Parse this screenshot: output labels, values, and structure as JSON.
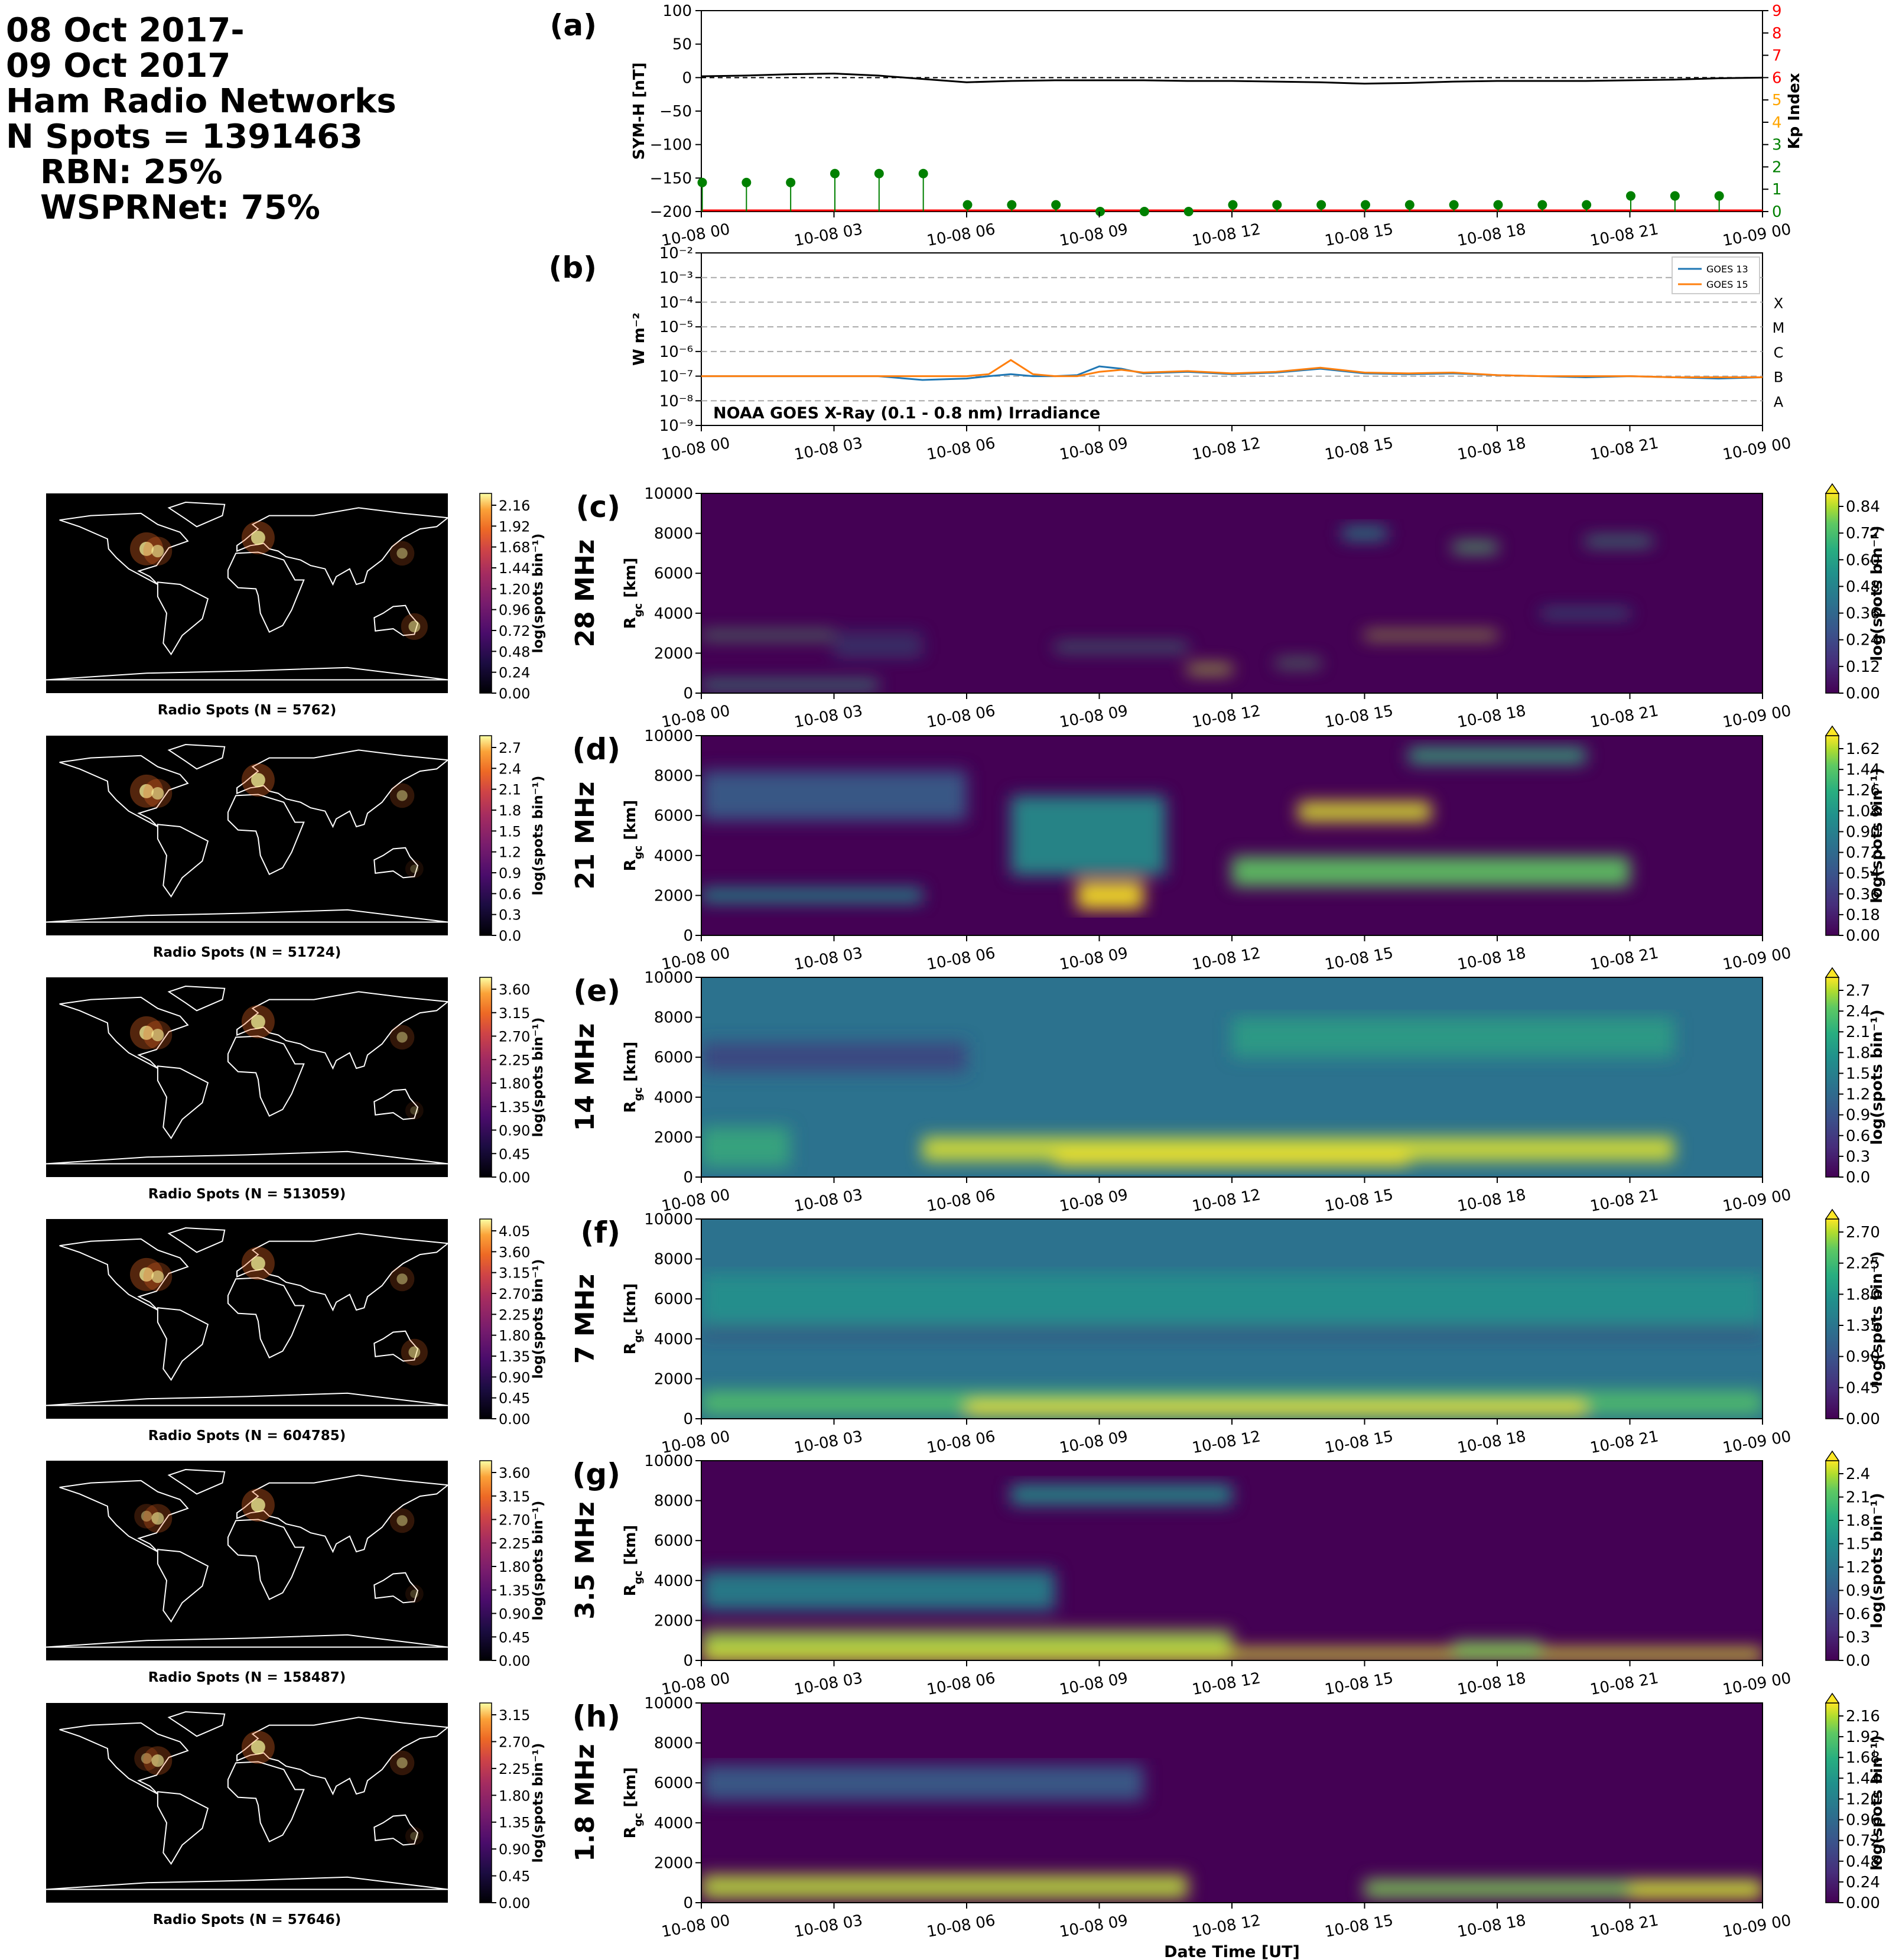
{
  "header": {
    "lines": [
      "08 Oct 2017-",
      "09 Oct 2017",
      "Ham Radio Networks",
      "N Spots = 1391463",
      "RBN: 25%",
      "WSPRNet: 75%"
    ]
  },
  "time_ticks": [
    "10-08 00",
    "10-08 03",
    "10-08 06",
    "10-08 09",
    "10-08 12",
    "10-08 15",
    "10-08 18",
    "10-08 21",
    "10-09 00"
  ],
  "panel_a": {
    "letter": "(a)",
    "ylabel": "SYM-H [nT]",
    "y2label": "Kp Index",
    "yticks": [
      "100",
      "50",
      "0",
      "−50",
      "−100",
      "−150",
      "−200"
    ],
    "y2ticks": [
      "0",
      "1",
      "2",
      "3",
      "4",
      "5",
      "6",
      "7",
      "8",
      "9"
    ]
  },
  "panel_b": {
    "letter": "(b)",
    "ylabel": "W m⁻²",
    "annotation": "NOAA GOES X-Ray (0.1 - 0.8 nm) Irradiance",
    "yticks": [
      "10⁻²",
      "10⁻³",
      "10⁻⁴",
      "10⁻⁵",
      "10⁻⁶",
      "10⁻⁷",
      "10⁻⁸",
      "10⁻⁹"
    ],
    "flare_classes": [
      "X",
      "M",
      "C",
      "B",
      "A"
    ],
    "legend": [
      "GOES 13",
      "GOES 15"
    ]
  },
  "band_panels": [
    {
      "letter": "(c)",
      "band": "28 MHz",
      "map_caption": "Radio Spots (N = 5762)",
      "map_ticks": [
        "2.16",
        "1.92",
        "1.68",
        "1.44",
        "1.20",
        "0.96",
        "0.72",
        "0.48",
        "0.24",
        "0.00"
      ],
      "cbar_ticks": [
        "0.84",
        "0.72",
        "0.60",
        "0.48",
        "0.36",
        "0.24",
        "0.12",
        "0.00"
      ]
    },
    {
      "letter": "(d)",
      "band": "21 MHz",
      "map_caption": "Radio Spots (N = 51724)",
      "map_ticks": [
        "2.7",
        "2.4",
        "2.1",
        "1.8",
        "1.5",
        "1.2",
        "0.9",
        "0.6",
        "0.3",
        "0.0"
      ],
      "cbar_ticks": [
        "1.62",
        "1.44",
        "1.26",
        "1.08",
        "0.90",
        "0.72",
        "0.54",
        "0.36",
        "0.18",
        "0.00"
      ]
    },
    {
      "letter": "(e)",
      "band": "14 MHz",
      "map_caption": "Radio Spots (N = 513059)",
      "map_ticks": [
        "3.60",
        "3.15",
        "2.70",
        "2.25",
        "1.80",
        "1.35",
        "0.90",
        "0.45",
        "0.00"
      ],
      "cbar_ticks": [
        "2.7",
        "2.4",
        "2.1",
        "1.8",
        "1.5",
        "1.2",
        "0.9",
        "0.6",
        "0.3",
        "0.0"
      ]
    },
    {
      "letter": "(f)",
      "band": "7 MHz",
      "map_caption": "Radio Spots (N = 604785)",
      "map_ticks": [
        "4.05",
        "3.60",
        "3.15",
        "2.70",
        "2.25",
        "1.80",
        "1.35",
        "0.90",
        "0.45",
        "0.00"
      ],
      "cbar_ticks": [
        "2.70",
        "2.25",
        "1.80",
        "1.35",
        "0.90",
        "0.45",
        "0.00"
      ]
    },
    {
      "letter": "(g)",
      "band": "3.5 MHz",
      "map_caption": "Radio Spots (N = 158487)",
      "map_ticks": [
        "3.60",
        "3.15",
        "2.70",
        "2.25",
        "1.80",
        "1.35",
        "0.90",
        "0.45",
        "0.00"
      ],
      "cbar_ticks": [
        "2.4",
        "2.1",
        "1.8",
        "1.5",
        "1.2",
        "0.9",
        "0.6",
        "0.3",
        "0.0"
      ]
    },
    {
      "letter": "(h)",
      "band": "1.8 MHz",
      "map_caption": "Radio Spots (N = 57646)",
      "map_ticks": [
        "3.15",
        "2.70",
        "2.25",
        "1.80",
        "1.35",
        "0.90",
        "0.45",
        "0.00"
      ],
      "cbar_ticks": [
        "2.16",
        "1.92",
        "1.68",
        "1.44",
        "1.20",
        "0.96",
        "0.72",
        "0.48",
        "0.24",
        "0.00"
      ]
    }
  ],
  "rgc_label": "R",
  "rgc_sub": "gc",
  "rgc_unit": " [km]",
  "rgc_ticks": [
    "10000",
    "8000",
    "6000",
    "4000",
    "2000",
    "0"
  ],
  "cbar_label": "log(spots bin⁻¹)",
  "xlabel": "Date Time [UT]",
  "colors": {
    "symh": "#000000",
    "kp_stem": "#008000",
    "goes13": "#1f77b4",
    "goes15": "#ff7f0e",
    "red_axis": "#ff0000",
    "orange_axis": "#ffa500",
    "green_axis": "#008000"
  },
  "chart_data": [
    {
      "type": "line",
      "title": "(a)",
      "xlabel": "",
      "ylabel": "SYM-H [nT]",
      "ylim": [
        -200,
        100
      ],
      "x": [
        0,
        1,
        2,
        3,
        4,
        5,
        6,
        7,
        8,
        9,
        10,
        11,
        12,
        13,
        14,
        15,
        16,
        17,
        18,
        19,
        20,
        21,
        22,
        23,
        24
      ],
      "series": [
        {
          "name": "",
          "values": [
            2,
            3,
            5,
            6,
            3,
            -2,
            -7,
            -5,
            -4,
            -4,
            -4,
            -5,
            -5,
            -6,
            -7,
            -9,
            -8,
            -6,
            -5,
            -5,
            -5,
            -4,
            -3,
            -1,
            0
          ]
        }
      ]
    },
    {
      "type": "scatter",
      "ylabel": "Kp Index",
      "ylim": [
        0,
        9
      ],
      "x": [
        0,
        1,
        2,
        3,
        4,
        5,
        6,
        7,
        8,
        9,
        10,
        11,
        12,
        13,
        14,
        15,
        16,
        17,
        18,
        19,
        20,
        21,
        22,
        23
      ],
      "series": [
        {
          "name": "",
          "values": [
            1.3,
            1.3,
            1.3,
            1.7,
            1.7,
            1.7,
            0.3,
            0.3,
            0.3,
            0,
            0,
            0,
            0.3,
            0.3,
            0.3,
            0.3,
            0.3,
            0.3,
            0.3,
            0.3,
            0.3,
            0.7,
            0.7,
            0.7
          ]
        }
      ]
    },
    {
      "type": "line",
      "title": "NOAA GOES X-Ray (0.1 - 0.8 nm) Irradiance",
      "ylabel": "W m⁻²",
      "yscale": "log",
      "ylim": [
        1e-09,
        0.01
      ],
      "x": [
        0,
        1,
        2,
        3,
        4,
        5,
        6,
        6.5,
        7,
        7.5,
        8,
        8.5,
        9,
        9.5,
        10,
        11,
        12,
        13,
        14,
        15,
        16,
        17,
        18,
        19,
        20,
        21,
        22,
        23,
        24
      ],
      "series": [
        {
          "name": "GOES 13",
          "values": [
            1e-07,
            1e-07,
            1e-07,
            1e-07,
            1e-07,
            7e-08,
            8e-08,
            1e-07,
            1.2e-07,
            1e-07,
            1e-07,
            1.1e-07,
            2.5e-07,
            2e-07,
            1.3e-07,
            1.5e-07,
            1.2e-07,
            1.4e-07,
            2e-07,
            1.3e-07,
            1.2e-07,
            1.3e-07,
            1.1e-07,
            1e-07,
            9e-08,
            1e-07,
            9e-08,
            8e-08,
            9e-08
          ]
        },
        {
          "name": "GOES 15",
          "values": [
            1e-07,
            1e-07,
            1e-07,
            1e-07,
            1e-07,
            1e-07,
            1e-07,
            1.2e-07,
            4.5e-07,
            1.2e-07,
            1e-07,
            1e-07,
            1.5e-07,
            1.8e-07,
            1.4e-07,
            1.6e-07,
            1.3e-07,
            1.5e-07,
            2.2e-07,
            1.4e-07,
            1.3e-07,
            1.4e-07,
            1.1e-07,
            1e-07,
            1e-07,
            1e-07,
            9e-08,
            9e-08,
            9e-08
          ]
        }
      ]
    },
    {
      "type": "heatmap",
      "title": "(c)",
      "ylabel": "R_gc [km]",
      "xlabel": "",
      "band": "28 MHz",
      "ylim": [
        0,
        10000
      ],
      "zlim": [
        0,
        0.84
      ]
    },
    {
      "type": "heatmap",
      "title": "(d)",
      "ylabel": "R_gc [km]",
      "xlabel": "",
      "band": "21 MHz",
      "ylim": [
        0,
        10000
      ],
      "zlim": [
        0,
        1.62
      ]
    },
    {
      "type": "heatmap",
      "title": "(e)",
      "ylabel": "R_gc [km]",
      "xlabel": "",
      "band": "14 MHz",
      "ylim": [
        0,
        10000
      ],
      "zlim": [
        0,
        2.7
      ]
    },
    {
      "type": "heatmap",
      "title": "(f)",
      "ylabel": "R_gc [km]",
      "xlabel": "",
      "band": "7 MHz",
      "ylim": [
        0,
        10000
      ],
      "zlim": [
        0,
        2.7
      ]
    },
    {
      "type": "heatmap",
      "title": "(g)",
      "ylabel": "R_gc [km]",
      "xlabel": "",
      "band": "3.5 MHz",
      "ylim": [
        0,
        10000
      ],
      "zlim": [
        0,
        2.4
      ]
    },
    {
      "type": "heatmap",
      "title": "(h)",
      "ylabel": "R_gc [km]",
      "xlabel": "Date Time [UT]",
      "band": "1.8 MHz",
      "ylim": [
        0,
        10000
      ],
      "zlim": [
        0,
        2.16
      ]
    }
  ]
}
